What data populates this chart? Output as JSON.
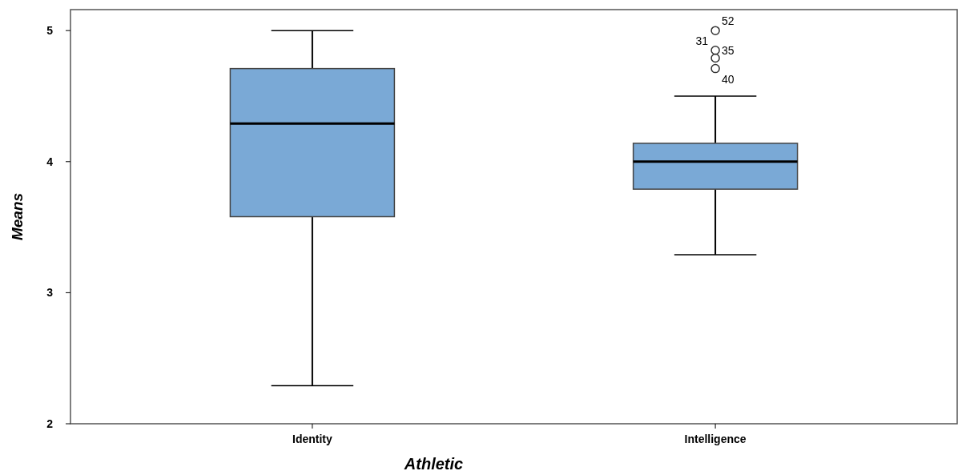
{
  "chart_data": {
    "type": "box",
    "categories": [
      "Identity",
      "Intelligence"
    ],
    "xlabel": "Athletic",
    "ylabel": "Means",
    "color": "#7aa9d6",
    "boxes": [
      {
        "low": 2.29,
        "q1": 3.58,
        "median": 4.29,
        "q3": 4.71,
        "high": 5.0
      },
      {
        "low": 3.29,
        "q1": 3.79,
        "median": 4.0,
        "q3": 4.14,
        "high": 4.5,
        "outliers": [
          5.0,
          4.85,
          4.79,
          4.71
        ]
      }
    ],
    "ylim": [
      2,
      5.16
    ],
    "yticks": [
      2,
      3,
      4,
      5
    ],
    "grid": false,
    "annotations": [
      "52",
      "31",
      "35",
      "40"
    ]
  }
}
